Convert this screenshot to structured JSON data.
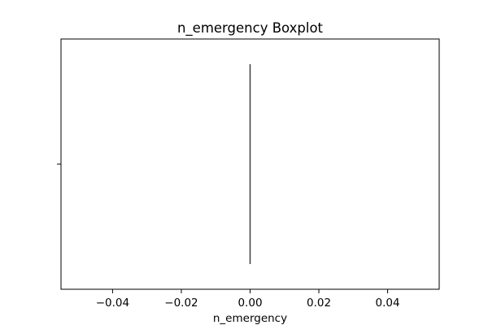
{
  "chart_data": {
    "type": "boxplot",
    "orientation": "horizontal",
    "title": "n_emergency Boxplot",
    "xlabel": "n_emergency",
    "ylabel": "",
    "xlim": [
      -0.055,
      0.055
    ],
    "x_ticks": [
      -0.04,
      -0.02,
      0.0,
      0.02,
      0.04
    ],
    "x_tick_labels": [
      "−0.04",
      "−0.02",
      "0.00",
      "0.02",
      "0.04"
    ],
    "grid": false,
    "legend": "none",
    "box": {
      "min": 0.0,
      "q1": 0.0,
      "median": 0.0,
      "q3": 0.0,
      "max": 0.0
    },
    "colors": {
      "box_stroke": "#3f3f3f",
      "axes": "#000000"
    }
  }
}
